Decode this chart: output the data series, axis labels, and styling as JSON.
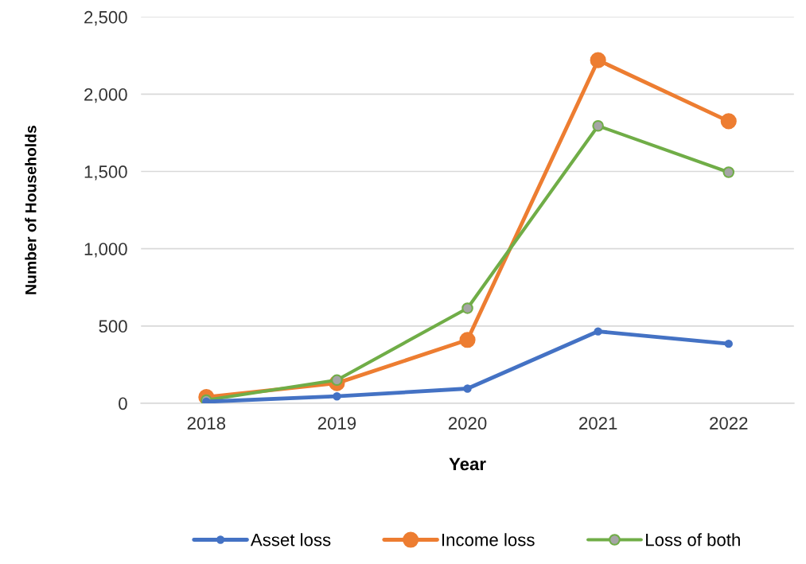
{
  "chart_data": {
    "type": "line",
    "xlabel": "Year",
    "ylabel": "Number of Households",
    "categories": [
      "2018",
      "2019",
      "2020",
      "2021",
      "2022"
    ],
    "series": [
      {
        "name": "Asset loss",
        "color": "#4472c4",
        "values": [
          10,
          45,
          95,
          465,
          385
        ]
      },
      {
        "name": "Income loss",
        "color": "#ed7d31",
        "values": [
          40,
          130,
          410,
          2220,
          1825
        ]
      },
      {
        "name": "Loss of both",
        "color": "#70ad47",
        "values": [
          20,
          150,
          615,
          1795,
          1495
        ]
      }
    ],
    "ylim": [
      0,
      2500
    ],
    "yticks": [
      {
        "value": 0,
        "label": "0"
      },
      {
        "value": 500,
        "label": "500"
      },
      {
        "value": 1000,
        "label": "1,000"
      },
      {
        "value": 1500,
        "label": "1,500"
      },
      {
        "value": 2000,
        "label": "2,000"
      },
      {
        "value": 2500,
        "label": "2,500"
      }
    ],
    "grid": "y",
    "legend": "bottom",
    "marker": "circle",
    "line_style": "solid"
  }
}
